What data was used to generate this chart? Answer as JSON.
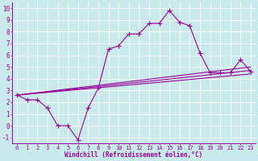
{
  "xlabel": "Windchill (Refroidissement éolien,°C)",
  "bg_color": "#c8eaea",
  "grid_color": "#ffffff",
  "line_color": "#990099",
  "xlim": [
    -0.5,
    23.5
  ],
  "ylim": [
    -1.5,
    10.5
  ],
  "xticks": [
    0,
    1,
    2,
    3,
    4,
    5,
    6,
    7,
    8,
    9,
    10,
    11,
    12,
    13,
    14,
    15,
    16,
    17,
    18,
    19,
    20,
    21,
    22,
    23
  ],
  "yticks": [
    -1,
    0,
    1,
    2,
    3,
    4,
    5,
    6,
    7,
    8,
    9,
    10
  ],
  "line1_x": [
    0,
    1,
    2,
    3,
    4,
    5,
    6,
    7,
    8,
    9,
    10,
    11,
    12,
    13,
    14,
    15,
    16,
    17,
    18,
    19,
    20,
    21,
    22,
    23
  ],
  "line1_y": [
    2.6,
    2.2,
    2.2,
    1.5,
    0.0,
    0.0,
    -1.2,
    1.5,
    3.2,
    6.5,
    6.8,
    7.8,
    7.8,
    8.7,
    8.7,
    9.8,
    8.8,
    8.5,
    6.2,
    4.5,
    4.5,
    4.5,
    5.6,
    4.6
  ],
  "line2_x": [
    0,
    23
  ],
  "line2_y": [
    2.6,
    5.0
  ],
  "line3_x": [
    0,
    23
  ],
  "line3_y": [
    2.6,
    4.4
  ],
  "line4_x": [
    0,
    23
  ],
  "line4_y": [
    2.6,
    4.7
  ],
  "tick_fontsize": 5,
  "xlabel_fontsize": 5.5,
  "linewidth": 0.8,
  "markersize": 2.5
}
